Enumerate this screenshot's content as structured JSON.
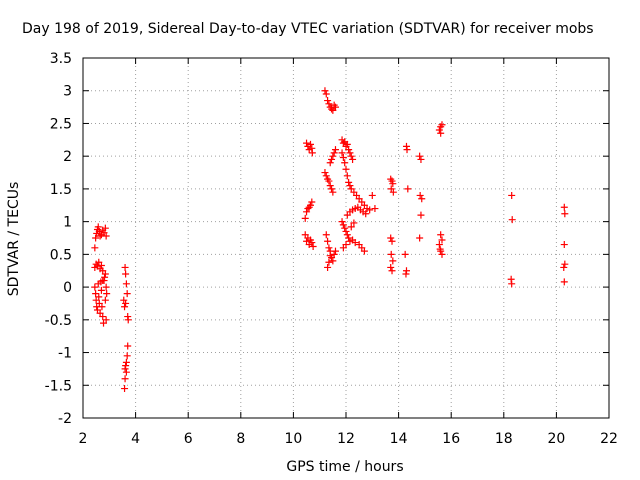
{
  "chart_data": {
    "type": "scatter",
    "title": "Day 198 of 2019, Sidereal Day-to-day VTEC variation (SDTVAR) for receiver mobs",
    "xlabel": "GPS time / hours",
    "ylabel": "SDTVAR / TECUs",
    "xlim": [
      2,
      22
    ],
    "ylim": [
      -2,
      3.5
    ],
    "xticks": [
      2,
      4,
      6,
      8,
      10,
      12,
      14,
      16,
      18,
      20,
      22
    ],
    "yticks": [
      -2,
      -1.5,
      -1,
      -0.5,
      0,
      0.5,
      1,
      1.5,
      2,
      2.5,
      3,
      3.5
    ],
    "xtick_labels": [
      "2",
      "4",
      "6",
      "8",
      "10",
      "12",
      "14",
      "16",
      "18",
      "20",
      "22"
    ],
    "ytick_labels": [
      "-2",
      "-1.5",
      "-1",
      "-0.5",
      "0",
      "0.5",
      "1",
      "1.5",
      "2",
      "2.5",
      "3",
      "3.5"
    ],
    "grid": true,
    "marker": "+",
    "color": "#ff0000",
    "series": [
      {
        "name": "SDTVAR",
        "points": [
          [
            2.45,
            0.6
          ],
          [
            2.48,
            0.75
          ],
          [
            2.52,
            0.82
          ],
          [
            2.55,
            0.88
          ],
          [
            2.58,
            0.92
          ],
          [
            2.62,
            0.85
          ],
          [
            2.65,
            0.78
          ],
          [
            2.7,
            0.8
          ],
          [
            2.75,
            0.87
          ],
          [
            2.8,
            0.83
          ],
          [
            2.85,
            0.9
          ],
          [
            2.88,
            0.78
          ],
          [
            2.45,
            0.3
          ],
          [
            2.5,
            0.35
          ],
          [
            2.55,
            0.32
          ],
          [
            2.6,
            0.38
          ],
          [
            2.65,
            0.28
          ],
          [
            2.7,
            0.33
          ],
          [
            2.75,
            0.25
          ],
          [
            2.45,
            0.0
          ],
          [
            2.48,
            -0.1
          ],
          [
            2.5,
            -0.2
          ],
          [
            2.52,
            -0.3
          ],
          [
            2.55,
            -0.35
          ],
          [
            2.58,
            0.05
          ],
          [
            2.6,
            -0.15
          ],
          [
            2.62,
            -0.25
          ],
          [
            2.65,
            -0.4
          ],
          [
            2.68,
            0.08
          ],
          [
            2.7,
            -0.05
          ],
          [
            2.72,
            -0.3
          ],
          [
            2.75,
            -0.45
          ],
          [
            2.78,
            -0.55
          ],
          [
            2.8,
            0.1
          ],
          [
            2.82,
            0.15
          ],
          [
            2.85,
            0.2
          ],
          [
            2.85,
            -0.2
          ],
          [
            2.88,
            0.0
          ],
          [
            2.88,
            -0.5
          ],
          [
            2.75,
            0.1
          ],
          [
            2.9,
            -0.1
          ],
          [
            3.6,
            0.3
          ],
          [
            3.62,
            0.2
          ],
          [
            3.65,
            0.05
          ],
          [
            3.68,
            -0.1
          ],
          [
            3.55,
            -0.2
          ],
          [
            3.58,
            -0.3
          ],
          [
            3.7,
            -0.45
          ],
          [
            3.72,
            -0.5
          ],
          [
            3.62,
            -0.25
          ],
          [
            3.7,
            -0.9
          ],
          [
            3.68,
            -1.05
          ],
          [
            3.65,
            -1.15
          ],
          [
            3.62,
            -1.2
          ],
          [
            3.6,
            -1.25
          ],
          [
            3.65,
            -1.3
          ],
          [
            3.6,
            -1.4
          ],
          [
            3.58,
            -1.55
          ],
          [
            10.5,
            2.2
          ],
          [
            10.55,
            2.15
          ],
          [
            10.6,
            2.1
          ],
          [
            10.65,
            2.18
          ],
          [
            10.7,
            2.12
          ],
          [
            10.72,
            2.05
          ],
          [
            10.45,
            1.05
          ],
          [
            10.5,
            1.15
          ],
          [
            10.55,
            1.2
          ],
          [
            10.6,
            1.22
          ],
          [
            10.65,
            1.25
          ],
          [
            10.7,
            1.3
          ],
          [
            10.45,
            0.8
          ],
          [
            10.5,
            0.7
          ],
          [
            10.55,
            0.75
          ],
          [
            10.6,
            0.65
          ],
          [
            10.65,
            0.72
          ],
          [
            10.7,
            0.68
          ],
          [
            10.75,
            0.62
          ],
          [
            11.2,
            3.0
          ],
          [
            11.25,
            2.95
          ],
          [
            11.3,
            2.85
          ],
          [
            11.35,
            2.8
          ],
          [
            11.4,
            2.75
          ],
          [
            11.45,
            2.72
          ],
          [
            11.5,
            2.7
          ],
          [
            11.55,
            2.78
          ],
          [
            11.6,
            2.75
          ],
          [
            11.2,
            1.75
          ],
          [
            11.25,
            1.7
          ],
          [
            11.3,
            1.65
          ],
          [
            11.35,
            1.62
          ],
          [
            11.4,
            1.55
          ],
          [
            11.45,
            1.5
          ],
          [
            11.5,
            1.45
          ],
          [
            11.4,
            1.9
          ],
          [
            11.45,
            1.95
          ],
          [
            11.5,
            2.0
          ],
          [
            11.55,
            2.05
          ],
          [
            11.6,
            2.1
          ],
          [
            11.25,
            0.8
          ],
          [
            11.3,
            0.7
          ],
          [
            11.35,
            0.6
          ],
          [
            11.4,
            0.55
          ],
          [
            11.45,
            0.45
          ],
          [
            11.5,
            0.4
          ],
          [
            11.55,
            0.5
          ],
          [
            11.3,
            0.3
          ],
          [
            11.35,
            0.38
          ],
          [
            11.6,
            0.55
          ],
          [
            11.4,
            0.48
          ],
          [
            11.85,
            2.25
          ],
          [
            11.9,
            2.2
          ],
          [
            11.95,
            2.22
          ],
          [
            12.0,
            2.15
          ],
          [
            12.05,
            2.18
          ],
          [
            12.1,
            2.1
          ],
          [
            12.15,
            2.05
          ],
          [
            12.2,
            2.0
          ],
          [
            12.25,
            1.95
          ],
          [
            11.85,
            2.05
          ],
          [
            11.9,
            1.98
          ],
          [
            11.95,
            1.9
          ],
          [
            12.0,
            1.8
          ],
          [
            12.05,
            1.7
          ],
          [
            12.1,
            1.6
          ],
          [
            12.15,
            1.55
          ],
          [
            12.2,
            1.5
          ],
          [
            12.3,
            1.45
          ],
          [
            12.4,
            1.4
          ],
          [
            12.5,
            1.35
          ],
          [
            12.6,
            1.3
          ],
          [
            12.7,
            1.25
          ],
          [
            12.8,
            1.2
          ],
          [
            12.9,
            1.18
          ],
          [
            12.05,
            1.1
          ],
          [
            12.15,
            1.15
          ],
          [
            12.25,
            1.18
          ],
          [
            12.35,
            1.2
          ],
          [
            12.45,
            1.22
          ],
          [
            12.55,
            1.18
          ],
          [
            12.65,
            1.15
          ],
          [
            12.75,
            1.12
          ],
          [
            11.85,
            1.0
          ],
          [
            11.9,
            0.95
          ],
          [
            11.95,
            0.9
          ],
          [
            12.0,
            0.85
          ],
          [
            12.05,
            0.8
          ],
          [
            12.1,
            0.75
          ],
          [
            12.15,
            0.7
          ],
          [
            12.25,
            0.72
          ],
          [
            12.35,
            0.68
          ],
          [
            12.5,
            0.65
          ],
          [
            12.6,
            0.6
          ],
          [
            12.7,
            0.55
          ],
          [
            11.9,
            0.6
          ],
          [
            12.0,
            0.65
          ],
          [
            12.2,
            0.92
          ],
          [
            12.3,
            0.98
          ],
          [
            13.0,
            1.4
          ],
          [
            13.1,
            1.2
          ],
          [
            13.7,
            1.65
          ],
          [
            13.75,
            1.62
          ],
          [
            13.72,
            1.5
          ],
          [
            13.8,
            1.45
          ],
          [
            13.78,
            1.58
          ],
          [
            13.7,
            0.75
          ],
          [
            13.75,
            0.7
          ],
          [
            13.72,
            0.5
          ],
          [
            13.78,
            0.4
          ],
          [
            13.7,
            0.3
          ],
          [
            13.75,
            0.25
          ],
          [
            14.3,
            2.15
          ],
          [
            14.32,
            2.1
          ],
          [
            14.35,
            1.5
          ],
          [
            14.25,
            0.5
          ],
          [
            14.3,
            0.25
          ],
          [
            14.28,
            0.2
          ],
          [
            14.8,
            2.0
          ],
          [
            14.85,
            1.95
          ],
          [
            14.82,
            1.4
          ],
          [
            14.88,
            1.35
          ],
          [
            14.85,
            1.1
          ],
          [
            14.8,
            0.75
          ],
          [
            15.6,
            2.45
          ],
          [
            15.65,
            2.48
          ],
          [
            15.55,
            2.4
          ],
          [
            15.6,
            2.35
          ],
          [
            15.6,
            0.8
          ],
          [
            15.65,
            0.72
          ],
          [
            15.55,
            0.65
          ],
          [
            15.6,
            0.55
          ],
          [
            15.65,
            0.5
          ],
          [
            15.58,
            0.58
          ],
          [
            18.3,
            1.4
          ],
          [
            18.32,
            1.03
          ],
          [
            18.28,
            0.12
          ],
          [
            18.3,
            0.05
          ],
          [
            20.3,
            1.22
          ],
          [
            20.32,
            1.12
          ],
          [
            20.3,
            0.65
          ],
          [
            20.32,
            0.35
          ],
          [
            20.28,
            0.3
          ],
          [
            20.3,
            0.08
          ]
        ]
      }
    ]
  }
}
